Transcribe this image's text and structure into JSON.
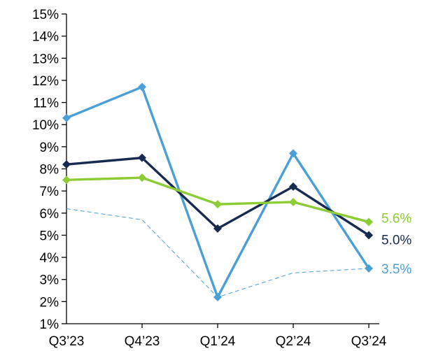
{
  "chart_data": {
    "type": "line",
    "title": "",
    "xlabel": "",
    "ylabel": "",
    "categories": [
      "Q3’23",
      "Q4’23",
      "Q1’24",
      "Q2’24",
      "Q3’24"
    ],
    "ylim": [
      1,
      15
    ],
    "yticks": [
      1,
      2,
      3,
      4,
      5,
      6,
      7,
      8,
      9,
      10,
      11,
      12,
      13,
      14,
      15
    ],
    "ytick_labels": [
      "1%",
      "2%",
      "3%",
      "4%",
      "5%",
      "6%",
      "7%",
      "8%",
      "9%",
      "10%",
      "11%",
      "12%",
      "13%",
      "14%",
      "15%"
    ],
    "grid": false,
    "legend": "none",
    "series": [
      {
        "values": [
          10.3,
          11.7,
          2.2,
          8.7,
          3.5
        ],
        "color": "#4a9fd6",
        "marker": "diamond",
        "style": "solid",
        "end_label": "3.5%"
      },
      {
        "values": [
          8.2,
          8.5,
          5.3,
          7.2,
          5.0
        ],
        "color": "#172a50",
        "marker": "diamond",
        "style": "solid",
        "end_label": "5.0%"
      },
      {
        "values": [
          7.5,
          7.6,
          6.4,
          6.5,
          5.6
        ],
        "color": "#8ccc35",
        "marker": "diamond",
        "style": "solid",
        "end_label": "5.6%"
      },
      {
        "values": [
          6.2,
          5.7,
          2.2,
          3.3,
          3.5
        ],
        "color": "#4a9fd6",
        "marker": "none",
        "style": "dashed"
      }
    ]
  }
}
